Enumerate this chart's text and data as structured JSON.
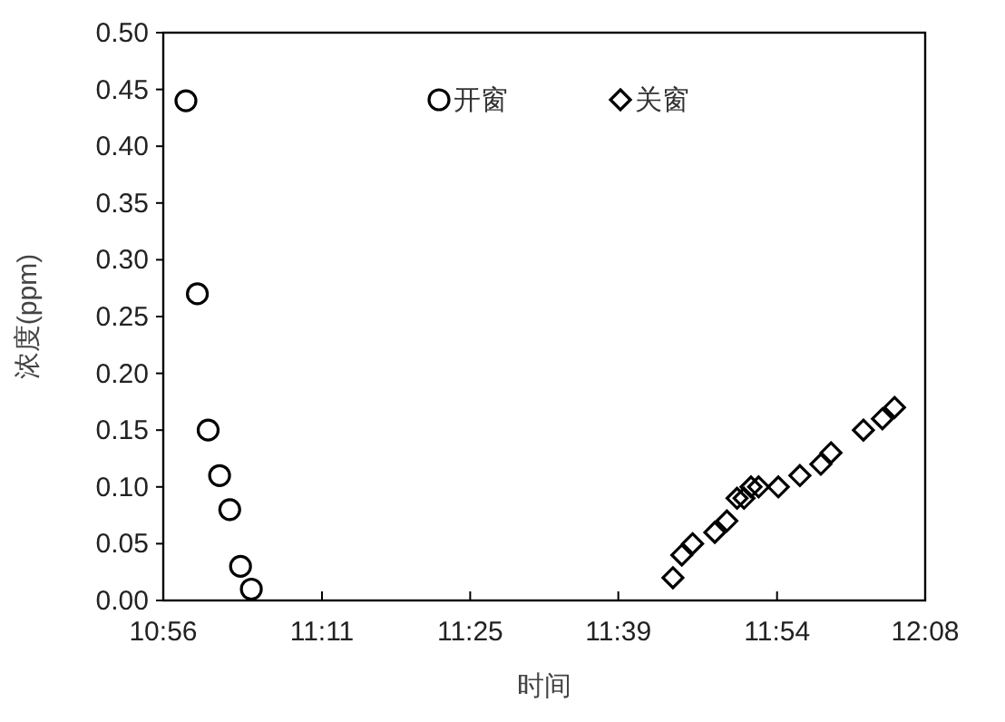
{
  "chart_data": {
    "type": "scatter",
    "xlabel": "时间",
    "ylabel": "浓度(ppm)",
    "xlim": [
      10.9333,
      12.1333
    ],
    "xticks": [
      {
        "value": 10.9333,
        "label": "10:56"
      },
      {
        "value": 11.1833,
        "label": "11:11"
      },
      {
        "value": 11.4167,
        "label": "11:25"
      },
      {
        "value": 11.65,
        "label": "11:39"
      },
      {
        "value": 11.9,
        "label": "11:54"
      },
      {
        "value": 12.1333,
        "label": "12:08"
      }
    ],
    "ylim": [
      0,
      0.5
    ],
    "yticks": [
      {
        "value": 0,
        "label": "0.00"
      },
      0.05,
      {
        "value": 0.1,
        "label": "0.10"
      },
      0.15,
      {
        "value": 0.2,
        "label": "0.20"
      },
      0.25,
      {
        "value": 0.3,
        "label": "0.30"
      },
      0.35,
      {
        "value": 0.4,
        "label": "0.40"
      },
      0.45,
      {
        "value": 0.5,
        "label": "0.50"
      }
    ],
    "grid": false,
    "legend": "top",
    "series": [
      {
        "name": "开窗",
        "color": "#000000",
        "marker": "circle",
        "x": [
          10.969,
          10.987,
          11.004,
          11.022,
          11.038,
          11.055,
          11.072
        ],
        "values": [
          0.44,
          0.27,
          0.15,
          0.11,
          0.08,
          0.03,
          0.01
        ]
      },
      {
        "name": "关窗",
        "color": "#000000",
        "marker": "diamond",
        "x": [
          11.736,
          11.75,
          11.767,
          11.802,
          11.821,
          11.837,
          11.848,
          11.859,
          11.871,
          11.902,
          11.936,
          11.969,
          11.985,
          12.036,
          12.066,
          12.085
        ],
        "values": [
          0.02,
          0.04,
          0.05,
          0.06,
          0.07,
          0.09,
          0.09,
          0.1,
          0.1,
          0.1,
          0.11,
          0.12,
          0.13,
          0.15,
          0.16,
          0.17
        ]
      }
    ]
  }
}
